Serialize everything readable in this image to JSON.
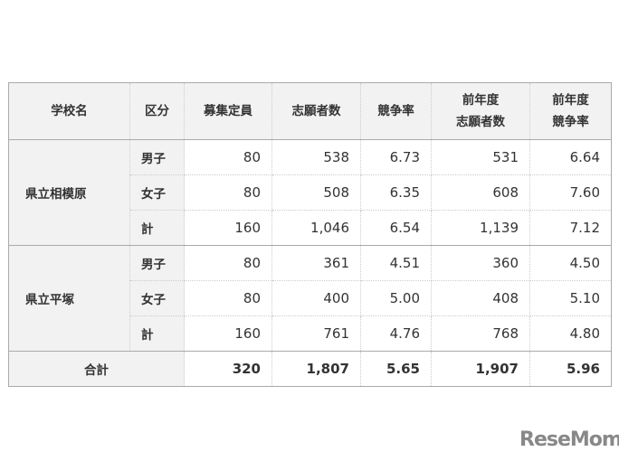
{
  "headers": [
    "学校名",
    "区分",
    "募集定員",
    "志願者数",
    "競争率",
    "前年度",
    "志願者数",
    "前年度",
    "競争率"
  ],
  "schools": [
    {
      "name": "県立相模原",
      "rows": [
        {
          "kubun": "男子",
          "cap": "80",
          "app": "538",
          "rate": "6.73",
          "prev_app": "531",
          "prev_rate": "6.64"
        },
        {
          "kubun": "女子",
          "cap": "80",
          "app": "508",
          "rate": "6.35",
          "prev_app": "608",
          "prev_rate": "7.60"
        },
        {
          "kubun": "計",
          "cap": "160",
          "app": "1,046",
          "rate": "6.54",
          "prev_app": "1,139",
          "prev_rate": "7.12"
        }
      ]
    },
    {
      "name": "県立平塚",
      "rows": [
        {
          "kubun": "男子",
          "cap": "80",
          "app": "361",
          "rate": "4.51",
          "prev_app": "360",
          "prev_rate": "4.50"
        },
        {
          "kubun": "女子",
          "cap": "80",
          "app": "400",
          "rate": "5.00",
          "prev_app": "408",
          "prev_rate": "5.10"
        },
        {
          "kubun": "計",
          "cap": "160",
          "app": "761",
          "rate": "4.76",
          "prev_app": "768",
          "prev_rate": "4.80"
        }
      ]
    }
  ],
  "total": {
    "label": "合計",
    "cap": "320",
    "app": "1,807",
    "rate": "5.65",
    "prev_app": "1,907",
    "prev_rate": "5.96"
  },
  "logo": "ReseMom"
}
